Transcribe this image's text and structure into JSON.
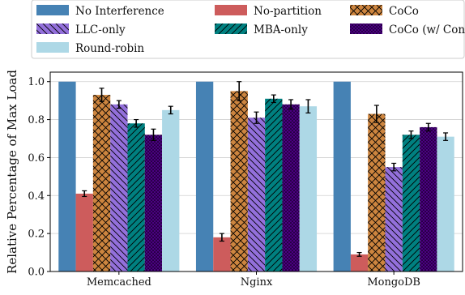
{
  "chart_data": {
    "type": "bar",
    "title": "",
    "xlabel": "",
    "ylabel": "Relative Percentage of Max Load",
    "ylim": [
      0,
      1.05
    ],
    "yticks": [
      0.0,
      0.2,
      0.4,
      0.6,
      0.8,
      1.0
    ],
    "ytick_labels": [
      "0.0",
      "0.2",
      "0.4",
      "0.6",
      "0.8",
      "1.0"
    ],
    "grid": "horizontal",
    "legend_position": "top",
    "categories": [
      "Memcached",
      "Nginx",
      "MongoDB"
    ],
    "series": [
      {
        "name": "No Interference",
        "color": "#4682b4",
        "hatch": "none",
        "values": [
          1.0,
          1.0,
          1.0
        ],
        "errors": [
          0,
          0,
          0
        ]
      },
      {
        "name": "No-partition",
        "color": "#cd5c5c",
        "hatch": "none",
        "values": [
          0.41,
          0.18,
          0.09
        ],
        "errors": [
          0.015,
          0.02,
          0.01
        ]
      },
      {
        "name": "CoCo",
        "color": "#cd853f",
        "hatch": "cross",
        "values": [
          0.93,
          0.95,
          0.83
        ],
        "errors": [
          0.035,
          0.05,
          0.045
        ]
      },
      {
        "name": "LLC-only",
        "color": "#9370db",
        "hatch": "back-diagonal",
        "values": [
          0.88,
          0.81,
          0.55
        ],
        "errors": [
          0.02,
          0.03,
          0.02
        ]
      },
      {
        "name": "MBA-only",
        "color": "#008080",
        "hatch": "diagonal",
        "values": [
          0.78,
          0.91,
          0.72
        ],
        "errors": [
          0.02,
          0.02,
          0.02
        ]
      },
      {
        "name": "CoCo (w/ Conflict)",
        "color": "#4b0082",
        "hatch": "dots",
        "values": [
          0.72,
          0.88,
          0.76
        ],
        "errors": [
          0.03,
          0.025,
          0.02
        ]
      },
      {
        "name": "Round-robin",
        "color": "#add8e6",
        "hatch": "none",
        "values": [
          0.85,
          0.87,
          0.71
        ],
        "errors": [
          0.02,
          0.035,
          0.02
        ]
      }
    ]
  }
}
